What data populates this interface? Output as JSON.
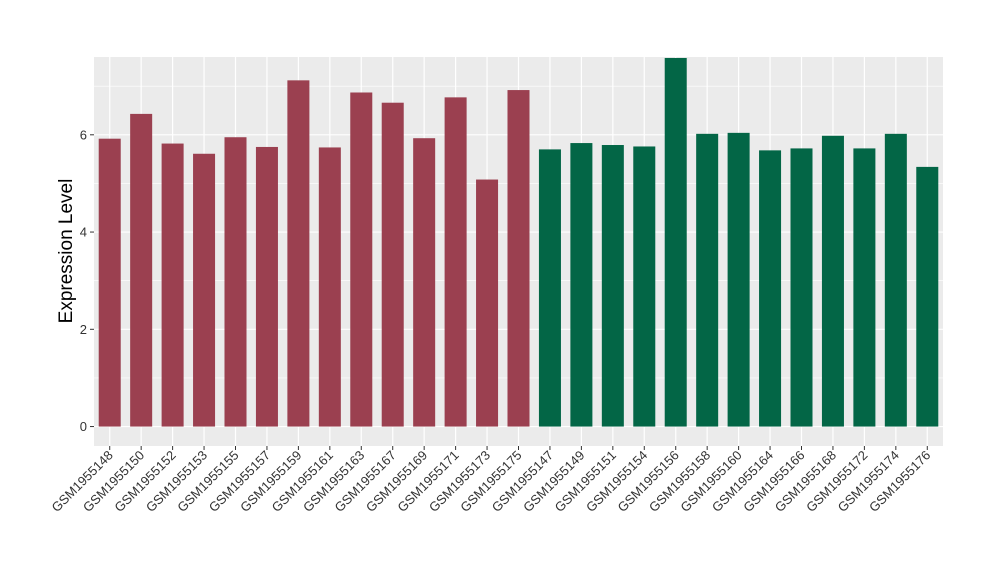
{
  "chart_data": {
    "type": "bar",
    "title": "",
    "xlabel": "",
    "ylabel": "Expression Level",
    "ylim": [
      -0.4,
      7.6
    ],
    "yticks": [
      0,
      2,
      4,
      6
    ],
    "grid": true,
    "panel_background": "#EBEBEB",
    "grid_color": "#FFFFFF",
    "categories": [
      "GSM1955148",
      "GSM1955150",
      "GSM1955152",
      "GSM1955153",
      "GSM1955155",
      "GSM1955157",
      "GSM1955159",
      "GSM1955161",
      "GSM1955163",
      "GSM1955167",
      "GSM1955169",
      "GSM1955171",
      "GSM1955173",
      "GSM1955175",
      "GSM1955147",
      "GSM1955149",
      "GSM1955151",
      "GSM1955154",
      "GSM1955156",
      "GSM1955158",
      "GSM1955160",
      "GSM1955164",
      "GSM1955166",
      "GSM1955168",
      "GSM1955172",
      "GSM1955174",
      "GSM1955176"
    ],
    "values": [
      5.92,
      6.43,
      5.82,
      5.61,
      5.95,
      5.75,
      7.12,
      5.74,
      6.87,
      6.66,
      5.93,
      6.77,
      5.08,
      6.92,
      5.7,
      5.83,
      5.79,
      5.76,
      7.58,
      6.02,
      6.04,
      5.68,
      5.72,
      5.98,
      5.72,
      6.02,
      5.34
    ],
    "bar_colors": [
      "#9B4050",
      "#9B4050",
      "#9B4050",
      "#9B4050",
      "#9B4050",
      "#9B4050",
      "#9B4050",
      "#9B4050",
      "#9B4050",
      "#9B4050",
      "#9B4050",
      "#9B4050",
      "#9B4050",
      "#9B4050",
      "#036646",
      "#036646",
      "#036646",
      "#036646",
      "#036646",
      "#036646",
      "#036646",
      "#036646",
      "#036646",
      "#036646",
      "#036646",
      "#036646",
      "#036646"
    ],
    "legend": "none"
  }
}
